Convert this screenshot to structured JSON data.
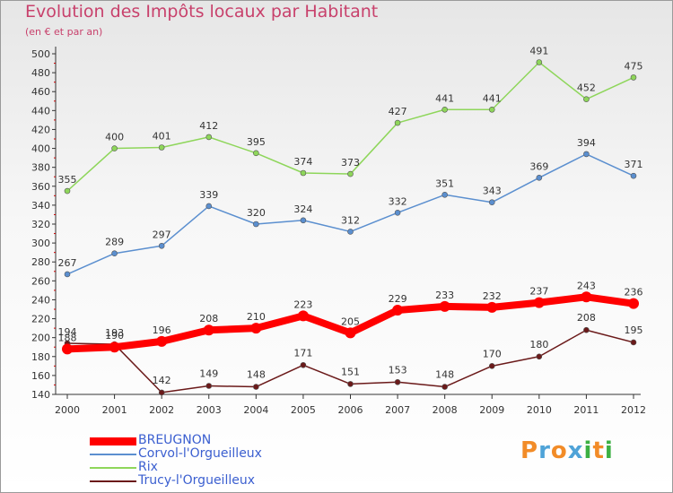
{
  "header": {
    "title": "Evolution des Impôts locaux par Habitant",
    "subtitle": "(en € et par an)"
  },
  "logo": {
    "text": "Proxiti",
    "letters": [
      "P",
      "r",
      "o",
      "x",
      "i",
      "t",
      "i"
    ]
  },
  "colors": {
    "title": "#c8416c",
    "axis": "#333333",
    "grid_tick": "#cc0000",
    "label": "#333333",
    "legend_text": "#3b5fd0",
    "logo_letters": [
      "#f28c28",
      "#4fa3d8",
      "#f28c28",
      "#4fa3d8",
      "#3cb043",
      "#f28c28",
      "#3cb043"
    ]
  },
  "chart_data": {
    "type": "line",
    "title": "Evolution des Impôts locaux par Habitant",
    "subtitle": "(en € et par an)",
    "x": [
      2000,
      2001,
      2002,
      2003,
      2004,
      2005,
      2006,
      2007,
      2008,
      2009,
      2010,
      2011,
      2012
    ],
    "ylim": [
      140,
      500
    ],
    "ymin": 140,
    "ymax": 500,
    "ystep": 20,
    "grid": false,
    "legend_position": "bottom-left",
    "series": [
      {
        "name": "BREUGNON",
        "color": "#ff0000",
        "values": [
          188,
          190,
          196,
          208,
          210,
          223,
          205,
          229,
          233,
          232,
          237,
          243,
          236
        ],
        "labels": [
          "188",
          "190",
          "196",
          "208",
          "210",
          "223",
          "205",
          "229",
          "233",
          "232",
          "237",
          "243",
          "236"
        ],
        "thick": true
      },
      {
        "name": "Corvol-l'Orgueilleux",
        "color": "#5b8fcf",
        "values": [
          267,
          289,
          297,
          339,
          320,
          324,
          312,
          332,
          351,
          343,
          369,
          394,
          371
        ],
        "labels": [
          "267",
          "289",
          "297",
          "339",
          "320",
          "324",
          "312",
          "332",
          "351",
          "343",
          "369",
          "394",
          "371"
        ],
        "thick": false
      },
      {
        "name": "Rix",
        "color": "#8ed65a",
        "values": [
          355,
          400,
          401,
          412,
          395,
          374,
          373,
          427,
          441,
          441,
          491,
          452,
          475
        ],
        "labels": [
          "355",
          "400",
          "401",
          "412",
          "395",
          "374",
          "373",
          "427",
          "441",
          "441",
          "491",
          "452",
          "475"
        ],
        "thick": false
      },
      {
        "name": "Trucy-l'Orgueilleux",
        "color": "#6b1a1a",
        "values": [
          194,
          193,
          142,
          149,
          148,
          171,
          151,
          153,
          148,
          170,
          180,
          208,
          195
        ],
        "labels": [
          "194",
          "193",
          "142",
          "149",
          "148",
          "171",
          "151",
          "153",
          "148",
          "170",
          "180",
          "208",
          "195"
        ],
        "thick": false
      }
    ]
  }
}
